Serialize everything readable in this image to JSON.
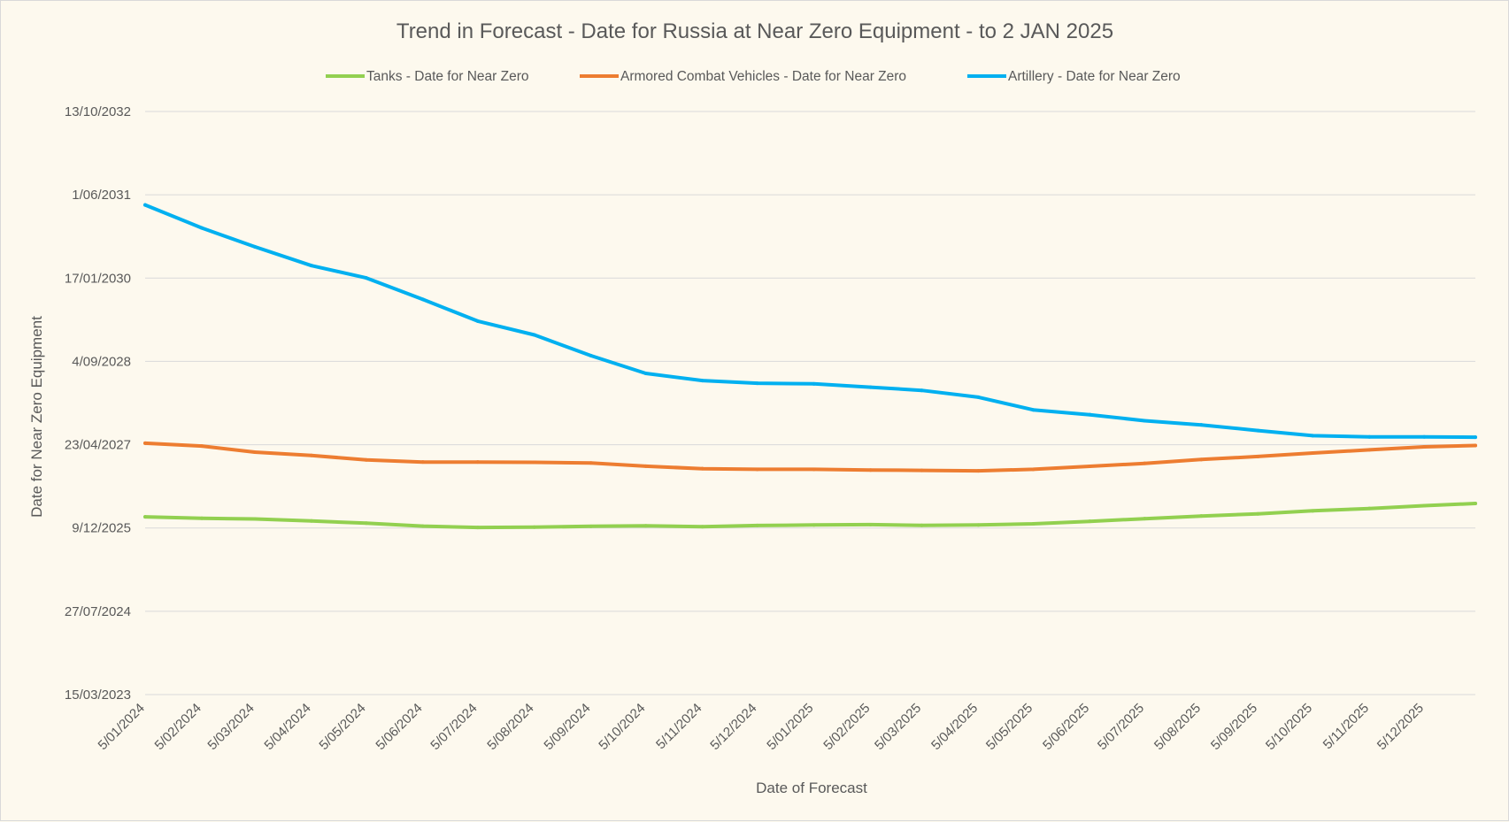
{
  "chart_data": {
    "type": "line",
    "title": "Trend in Forecast - Date for Russia at Near Zero Equipment - to 2 JAN 2025",
    "xlabel": "Date of Forecast",
    "ylabel": "Date for Near Zero Equipment",
    "legend_position": "top",
    "grid": true,
    "x_ticks": [
      "5/01/2024",
      "5/02/2024",
      "5/03/2024",
      "5/04/2024",
      "5/05/2024",
      "5/06/2024",
      "5/07/2024",
      "5/08/2024",
      "5/09/2024",
      "5/10/2024",
      "5/11/2024",
      "5/12/2024",
      "5/01/2025",
      "5/02/2025",
      "5/03/2025",
      "5/04/2025",
      "5/05/2025",
      "5/06/2025",
      "5/07/2025",
      "5/08/2025",
      "5/09/2025",
      "5/10/2025",
      "5/11/2025",
      "5/12/2025"
    ],
    "y_ticks": [
      "15/03/2023",
      "27/07/2024",
      "9/12/2025",
      "23/04/2027",
      "4/09/2028",
      "17/01/2030",
      "1/06/2031",
      "13/10/2032"
    ],
    "y_range": [
      "15/03/2023",
      "13/10/2032"
    ],
    "x_range": [
      "5/01/2024",
      "2/01/2026"
    ],
    "x": [
      "5/01/2024",
      "5/02/2024",
      "5/03/2024",
      "5/04/2024",
      "5/05/2024",
      "5/06/2024",
      "5/07/2024",
      "5/08/2024",
      "5/09/2024",
      "5/10/2024",
      "5/11/2024",
      "5/12/2024",
      "5/01/2025",
      "5/02/2025",
      "5/03/2025",
      "5/04/2025",
      "5/05/2025",
      "5/06/2025",
      "5/07/2025",
      "5/08/2025",
      "5/09/2025",
      "5/10/2025",
      "5/11/2025",
      "5/12/2025",
      "2/01/2026"
    ],
    "series": [
      {
        "name": "Tanks - Date for Near Zero",
        "color": "#92d050",
        "values": [
          "14/02/2026",
          "5/02/2026",
          "1/02/2026",
          "20/01/2026",
          "7/01/2026",
          "20/12/2025",
          "12/12/2025",
          "14/12/2025",
          "19/12/2025",
          "22/12/2025",
          "17/12/2025",
          "24/12/2025",
          "27/12/2025",
          "29/12/2025",
          "25/12/2025",
          "27/12/2025",
          "3/01/2026",
          "18/01/2026",
          "3/02/2026",
          "19/02/2026",
          "4/03/2026",
          "22/03/2026",
          "5/04/2026",
          "22/04/2026",
          "5/05/2026"
        ]
      },
      {
        "name": "Armored Combat Vehicles - Date for Near Zero",
        "color": "#ed7d31",
        "values": [
          "2/05/2027",
          "15/04/2027",
          "9/03/2027",
          "17/02/2027",
          "22/01/2027",
          "9/01/2027",
          "9/01/2027",
          "7/01/2027",
          "3/01/2027",
          "15/12/2026",
          "30/11/2026",
          "26/11/2026",
          "26/11/2026",
          "22/11/2026",
          "20/11/2026",
          "17/11/2026",
          "26/11/2026",
          "14/12/2026",
          "1/01/2027",
          "24/01/2027",
          "11/02/2027",
          "4/03/2027",
          "23/03/2027",
          "10/04/2027",
          "18/04/2027"
        ]
      },
      {
        "name": "Artillery - Date for Near Zero",
        "color": "#00b0f0",
        "values": [
          "1/04/2031",
          "14/11/2030",
          "24/07/2030",
          "2/04/2030",
          "18/01/2030",
          "11/09/2029",
          "4/05/2029",
          "10/02/2029",
          "8/10/2028",
          "24/06/2028",
          "12/05/2028",
          "26/04/2028",
          "22/04/2028",
          "2/04/2028",
          "14/03/2028",
          "2/02/2028",
          "18/11/2027",
          "20/10/2027",
          "14/09/2027",
          "20/08/2027",
          "17/07/2027",
          "16/06/2027",
          "9/06/2027",
          "9/06/2027",
          "7/06/2027"
        ]
      }
    ]
  }
}
